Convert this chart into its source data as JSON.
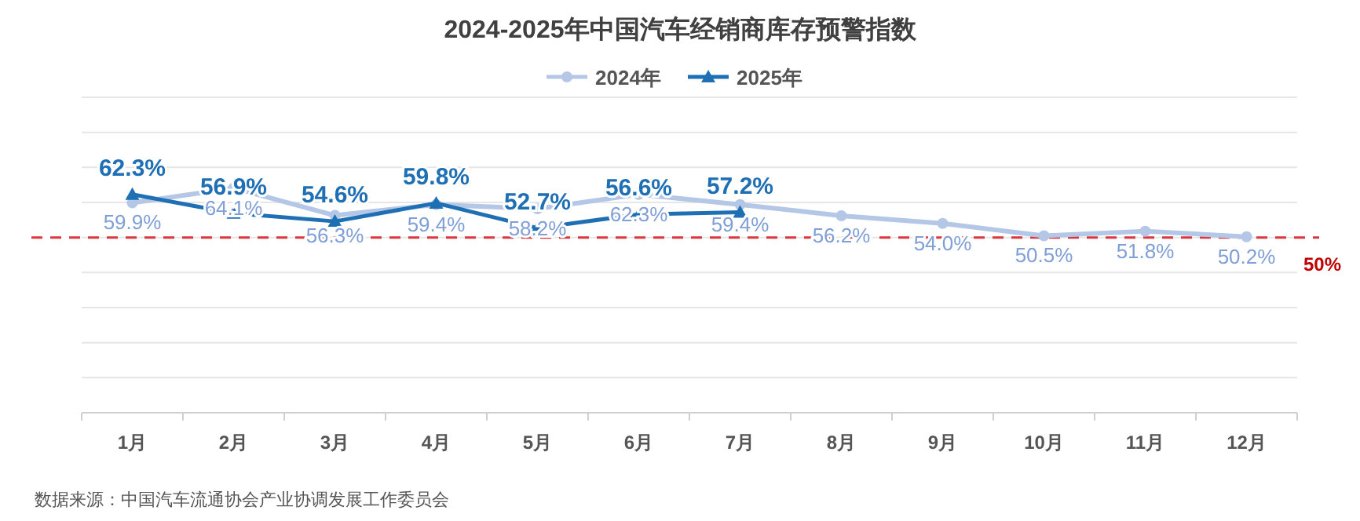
{
  "chart_data": {
    "type": "line",
    "title": "2024-2025年中国汽车经销商库存预警指数",
    "categories": [
      "1月",
      "2月",
      "3月",
      "4月",
      "5月",
      "6月",
      "7月",
      "8月",
      "9月",
      "10月",
      "11月",
      "12月"
    ],
    "series": [
      {
        "name": "2024年",
        "color": "#b4c7e7",
        "marker": "circle",
        "values": [
          59.9,
          64.1,
          56.3,
          59.4,
          58.2,
          62.3,
          59.4,
          56.2,
          54.0,
          50.5,
          51.8,
          50.2
        ],
        "value_labels": [
          "59.9%",
          "64.1%",
          "56.3%",
          "59.4%",
          "58.2%",
          "62.3%",
          "59.4%",
          "56.2%",
          "54.0%",
          "50.5%",
          "51.8%",
          "50.2%"
        ]
      },
      {
        "name": "2025年",
        "color": "#1f6fb5",
        "marker": "triangle",
        "values": [
          62.3,
          56.9,
          54.6,
          59.8,
          52.7,
          56.6,
          57.2,
          null,
          null,
          null,
          null,
          null
        ],
        "value_labels": [
          "62.3%",
          "56.9%",
          "54.6%",
          "59.8%",
          "52.7%",
          "56.6%",
          "57.2%",
          null,
          null,
          null,
          null,
          null
        ]
      }
    ],
    "ylim": [
      0,
      90
    ],
    "yticks": [
      {
        "value": 0,
        "label": null
      },
      {
        "value": 10,
        "label": null
      },
      {
        "value": 20,
        "label": null
      },
      {
        "value": 30,
        "label": null
      },
      {
        "value": 40,
        "label": null
      },
      {
        "value": 50,
        "label": null
      },
      {
        "value": 60,
        "label": null
      },
      {
        "value": 70,
        "label": null
      },
      {
        "value": 80,
        "label": null
      },
      {
        "value": 90,
        "label": null
      }
    ],
    "grid": "y",
    "legend": "top",
    "ref_lines": [
      {
        "axis": "y",
        "value": 50,
        "label": "50%",
        "color": "#d9363e",
        "line_style": "dashed"
      }
    ],
    "annotations": [
      "数据来源：中国汽车流通协会产业协调发展工作委员会"
    ]
  }
}
